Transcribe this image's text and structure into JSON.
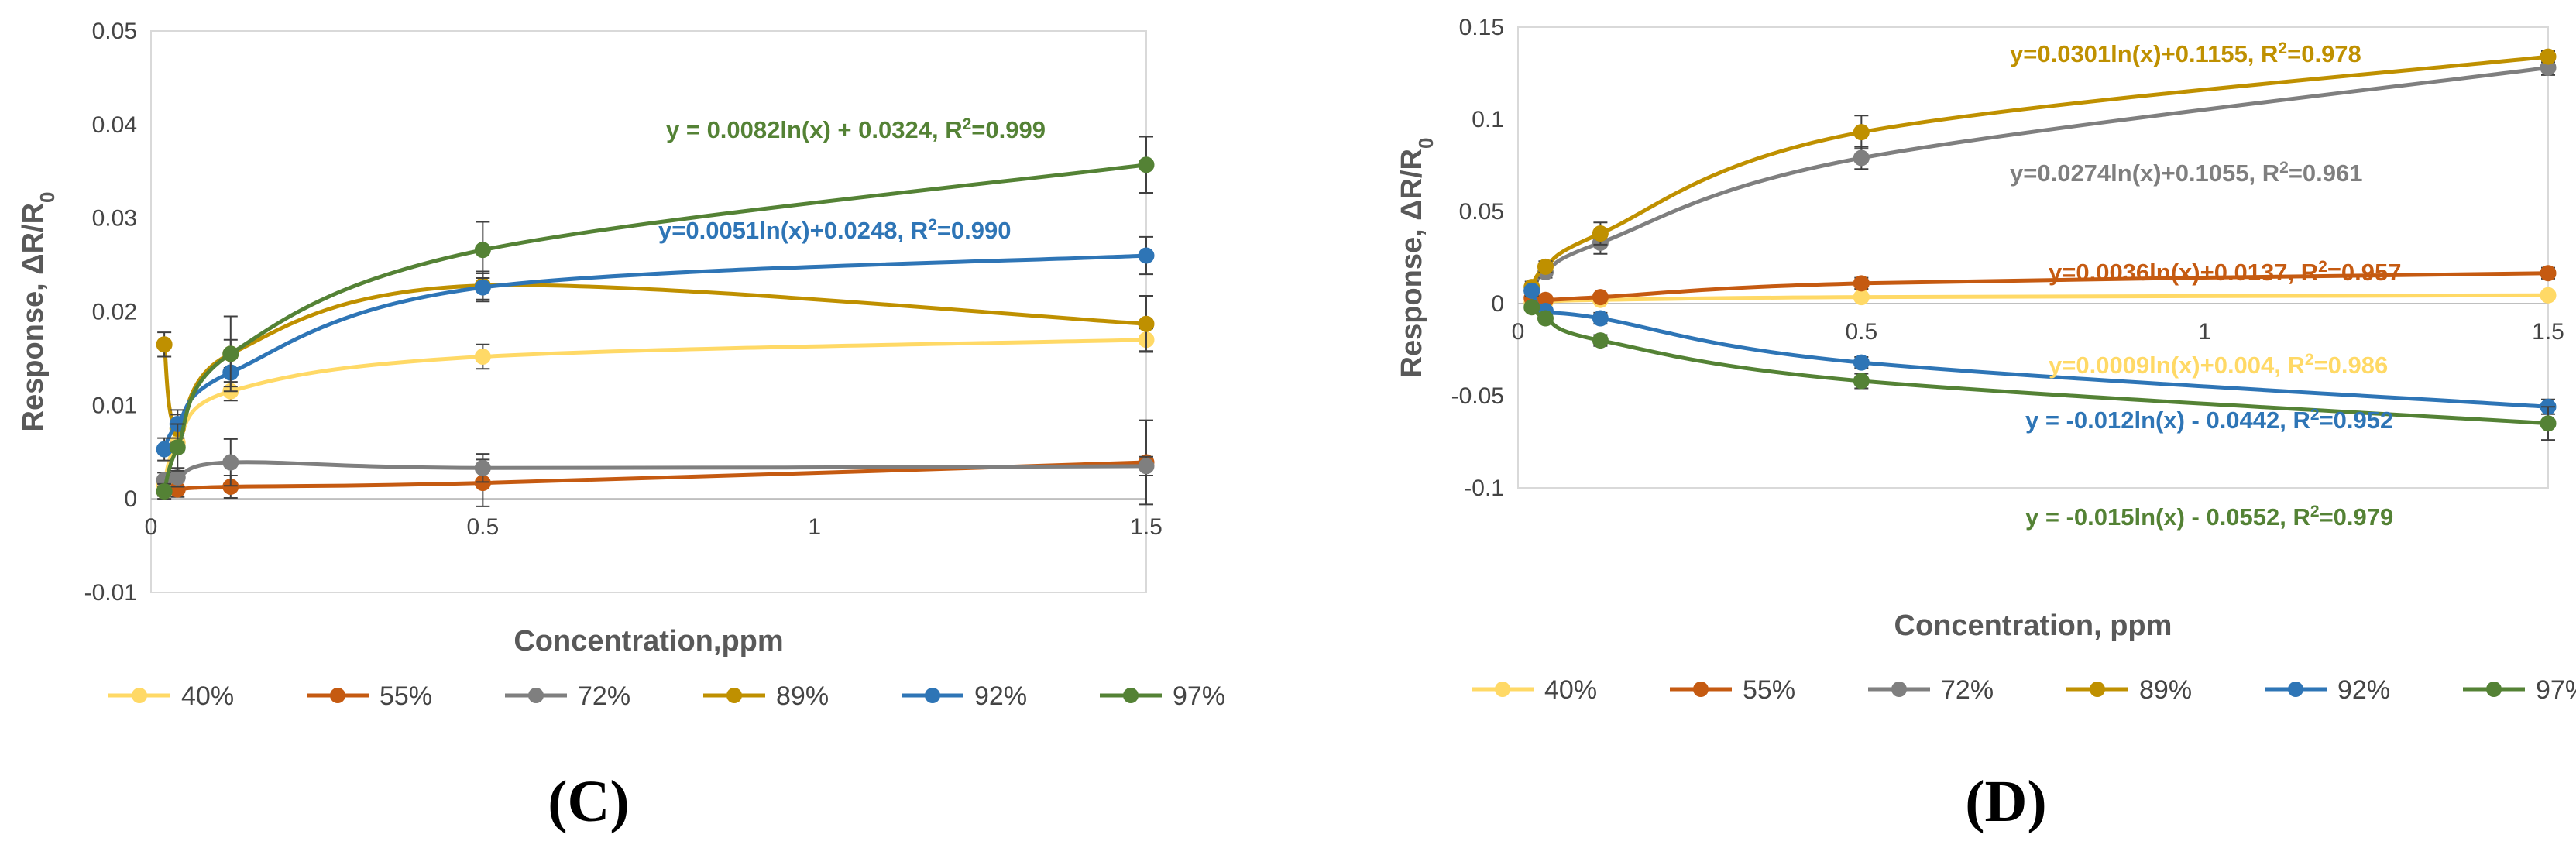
{
  "colors": {
    "40%": "#FFD966",
    "55%": "#C55A11",
    "72%": "#7F7F7F",
    "89%": "#BF9000",
    "92%": "#2E75B6",
    "97%": "#548235"
  },
  "chart_data": [
    {
      "type": "line",
      "panel_label": "(C)",
      "xlabel": "Concentration,ppm",
      "ylabel_main": "Response, ΔR/R",
      "ylabel_sub": "0",
      "xlim": [
        0,
        1.5
      ],
      "ylim": [
        -0.01,
        0.05
      ],
      "xticks": [
        0,
        0.5,
        1,
        1.5
      ],
      "xtick_labels": [
        "0",
        "0.5",
        "1",
        "1.5"
      ],
      "yticks": [
        -0.01,
        0,
        0.01,
        0.02,
        0.03,
        0.04,
        0.05
      ],
      "ytick_labels": [
        "-0.01",
        "0",
        "0.01",
        "0.02",
        "0.03",
        "0.04",
        "0.05"
      ],
      "legend": [
        "40%",
        "55%",
        "72%",
        "89%",
        "92%",
        "97%"
      ],
      "series": [
        {
          "name": "40%",
          "x": [
            0.02,
            0.04,
            0.12,
            0.5,
            1.5
          ],
          "y": [
            0.0015,
            0.006,
            0.0115,
            0.0152,
            0.017
          ],
          "err": [
            0.0005,
            0.001,
            0.001,
            0.0013,
            0.0012
          ]
        },
        {
          "name": "55%",
          "x": [
            0.02,
            0.04,
            0.12,
            0.5,
            1.5
          ],
          "y": [
            0.0008,
            0.001,
            0.0013,
            0.0017,
            0.0039
          ],
          "err": [
            0.0005,
            0.0008,
            0.0012,
            0.0025,
            0.0045
          ]
        },
        {
          "name": "72%",
          "x": [
            0.02,
            0.04,
            0.12,
            0.5,
            1.5
          ],
          "y": [
            0.002,
            0.0023,
            0.0039,
            0.0033,
            0.0035
          ],
          "err": [
            0.0008,
            0.001,
            0.0025,
            0.0015,
            0.001
          ]
        },
        {
          "name": "89%",
          "x": [
            0.02,
            0.04,
            0.12,
            0.5,
            1.5
          ],
          "y": [
            0.0165,
            0.0075,
            0.0155,
            0.0228,
            0.0187
          ],
          "err": [
            0.0013,
            0.0015,
            0.0015,
            0.0015,
            0.003
          ]
        },
        {
          "name": "92%",
          "x": [
            0.02,
            0.04,
            0.12,
            0.5,
            1.5
          ],
          "y": [
            0.0053,
            0.008,
            0.0135,
            0.0226,
            0.026
          ],
          "err": [
            0.0012,
            0.0015,
            0.0015,
            0.0015,
            0.002
          ]
        },
        {
          "name": "97%",
          "x": [
            0.02,
            0.04,
            0.12,
            0.5,
            1.5
          ],
          "y": [
            0.0008,
            0.0055,
            0.0155,
            0.0266,
            0.0357
          ],
          "err": [
            0.0008,
            0.0025,
            0.004,
            0.003,
            0.003
          ]
        }
      ],
      "fits": [
        {
          "series": "97%",
          "a": 0.0082,
          "b": 0.0324,
          "text": "y = 0.0082ln(x) + 0.0324, R",
          "r2": "=0.999"
        },
        {
          "series": "92%",
          "a": 0.0051,
          "b": 0.0248,
          "text": "y=0.0051ln(x)+0.0248, R",
          "r2": "=0.990"
        }
      ]
    },
    {
      "type": "line",
      "panel_label": "(D)",
      "xlabel": "Concentration, ppm",
      "ylabel_main": "Response, ΔR/R",
      "ylabel_sub": "0",
      "xlim": [
        0,
        1.5
      ],
      "ylim": [
        -0.1,
        0.15
      ],
      "xticks": [
        0,
        0.5,
        1,
        1.5
      ],
      "xtick_labels": [
        "0",
        "0.5",
        "1",
        "1.5"
      ],
      "yticks": [
        -0.1,
        -0.05,
        0,
        0.05,
        0.1,
        0.15
      ],
      "ytick_labels": [
        "-0.1",
        "-0.05",
        "0",
        "0.05",
        "0.1",
        "0.15"
      ],
      "legend": [
        "40%",
        "55%",
        "72%",
        "89%",
        "92%",
        "97%"
      ],
      "series": [
        {
          "name": "40%",
          "x": [
            0.02,
            0.04,
            0.12,
            0.5,
            1.5
          ],
          "y": [
            0.0005,
            0.001,
            0.002,
            0.0035,
            0.0045
          ],
          "err": [
            0,
            0,
            0,
            0,
            0
          ]
        },
        {
          "name": "55%",
          "x": [
            0.02,
            0.04,
            0.12,
            0.5,
            1.5
          ],
          "y": [
            0.003,
            0.002,
            0.0035,
            0.011,
            0.0165
          ],
          "err": [
            0.002,
            0.002,
            0.002,
            0.003,
            0.003
          ]
        },
        {
          "name": "72%",
          "x": [
            0.02,
            0.04,
            0.12,
            0.5,
            1.5
          ],
          "y": [
            0.007,
            0.017,
            0.033,
            0.079,
            0.128
          ],
          "err": [
            0.003,
            0.003,
            0.006,
            0.006,
            0.004
          ]
        },
        {
          "name": "89%",
          "x": [
            0.02,
            0.04,
            0.12,
            0.5,
            1.5
          ],
          "y": [
            0.009,
            0.02,
            0.038,
            0.093,
            0.134
          ],
          "err": [
            0.003,
            0.003,
            0.006,
            0.009,
            0.003
          ]
        },
        {
          "name": "92%",
          "x": [
            0.02,
            0.04,
            0.12,
            0.5,
            1.5
          ],
          "y": [
            0.007,
            -0.004,
            -0.008,
            -0.032,
            -0.056
          ],
          "err": [
            0.002,
            0.002,
            0.003,
            0.003,
            0.004
          ]
        },
        {
          "name": "97%",
          "x": [
            0.02,
            0.04,
            0.12,
            0.5,
            1.5
          ],
          "y": [
            -0.002,
            -0.008,
            -0.02,
            -0.042,
            -0.065
          ],
          "err": [
            0.002,
            0.002,
            0.003,
            0.004,
            0.009
          ]
        }
      ],
      "fits": [
        {
          "series": "89%",
          "a": 0.0301,
          "b": 0.1155,
          "text": "y=0.0301ln(x)+0.1155, R",
          "r2": "=0.978"
        },
        {
          "series": "72%",
          "a": 0.0274,
          "b": 0.1055,
          "text": "y=0.0274ln(x)+0.1055, R",
          "r2": "=0.961"
        },
        {
          "series": "55%",
          "a": 0.0036,
          "b": 0.0137,
          "text": "y=0.0036ln(x)+0.0137, R",
          "r2": "=0.957"
        },
        {
          "series": "40%",
          "a": 0.0009,
          "b": 0.004,
          "text": "y=0.0009ln(x)+0.004, R",
          "r2": "=0.986"
        },
        {
          "series": "92%",
          "a": -0.012,
          "b": -0.0442,
          "text": "y = -0.012ln(x) - 0.0442, R",
          "r2": "=0.952"
        },
        {
          "series": "97%",
          "a": -0.015,
          "b": -0.0552,
          "text": "y = -0.015ln(x) - 0.0552, R",
          "r2": "=0.979"
        }
      ]
    }
  ]
}
